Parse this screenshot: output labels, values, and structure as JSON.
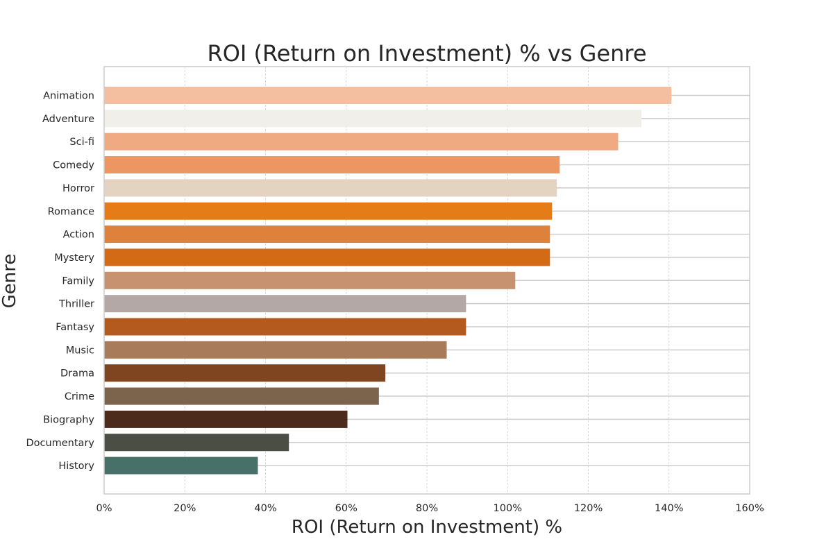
{
  "chart_data": {
    "type": "bar",
    "orientation": "horizontal",
    "title": "ROI (Return on Investment) % vs Genre",
    "xlabel": "ROI (Return on Investment) %",
    "ylabel": "Genre",
    "xlim": [
      0,
      160
    ],
    "xticks": [
      0,
      20,
      40,
      60,
      80,
      100,
      120,
      140,
      160
    ],
    "xtick_labels": [
      "0%",
      "20%",
      "40%",
      "60%",
      "80%",
      "100%",
      "120%",
      "140%",
      "160%"
    ],
    "grid": true,
    "categories": [
      "Animation",
      "Adventure",
      "Sci-fi",
      "Comedy",
      "Horror",
      "Romance",
      "Action",
      "Mystery",
      "Family",
      "Thriller",
      "Fantasy",
      "Music",
      "Drama",
      "Crime",
      "Biography",
      "Documentary",
      "History"
    ],
    "values": [
      140.6,
      133.2,
      127.4,
      112.9,
      112.2,
      111.0,
      110.5,
      110.5,
      101.9,
      89.7,
      89.7,
      84.9,
      69.7,
      68.1,
      60.3,
      45.8,
      38.1
    ],
    "colors": [
      "#f3bfa0",
      "#f0efea",
      "#f0aa82",
      "#ec9762",
      "#e3d3c0",
      "#e67c17",
      "#de823b",
      "#d36a16",
      "#c79270",
      "#b3a8a5",
      "#b45a1f",
      "#a87b5a",
      "#7f4520",
      "#7c634c",
      "#4c2b1c",
      "#4b4e45",
      "#467068"
    ]
  }
}
